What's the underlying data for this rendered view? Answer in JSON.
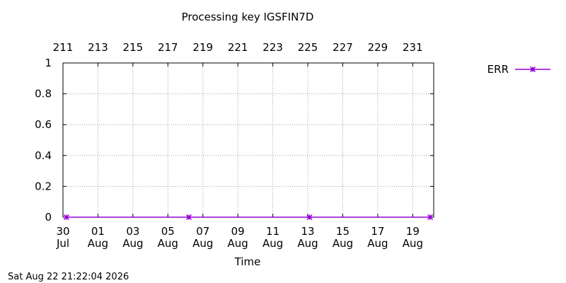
{
  "chart_data": {
    "type": "line",
    "title": "Processing key IGSFIN7D",
    "xlabel": "Time",
    "ylabel": "",
    "top_axis_ticks": [
      "211",
      "213",
      "215",
      "217",
      "219",
      "221",
      "223",
      "225",
      "227",
      "229",
      "231"
    ],
    "bottom_axis_ticks": [
      {
        "day": "30",
        "month": "Jul"
      },
      {
        "day": "01",
        "month": "Aug"
      },
      {
        "day": "03",
        "month": "Aug"
      },
      {
        "day": "05",
        "month": "Aug"
      },
      {
        "day": "07",
        "month": "Aug"
      },
      {
        "day": "09",
        "month": "Aug"
      },
      {
        "day": "11",
        "month": "Aug"
      },
      {
        "day": "13",
        "month": "Aug"
      },
      {
        "day": "15",
        "month": "Aug"
      },
      {
        "day": "17",
        "month": "Aug"
      },
      {
        "day": "19",
        "month": "Aug"
      }
    ],
    "y_ticks": [
      "0",
      "0.2",
      "0.4",
      "0.6",
      "0.8",
      "1"
    ],
    "xlim": [
      211,
      232.2
    ],
    "ylim": [
      0,
      1
    ],
    "grid": true,
    "legend": "top-right",
    "series": [
      {
        "name": "ERR",
        "color": "#9400d3",
        "x": [
          211.2,
          218.2,
          225.1,
          232.0
        ],
        "y": [
          0,
          0,
          0,
          0
        ]
      }
    ]
  },
  "footer": {
    "timestamp": "Sat Aug 22 21:22:04 2026"
  }
}
